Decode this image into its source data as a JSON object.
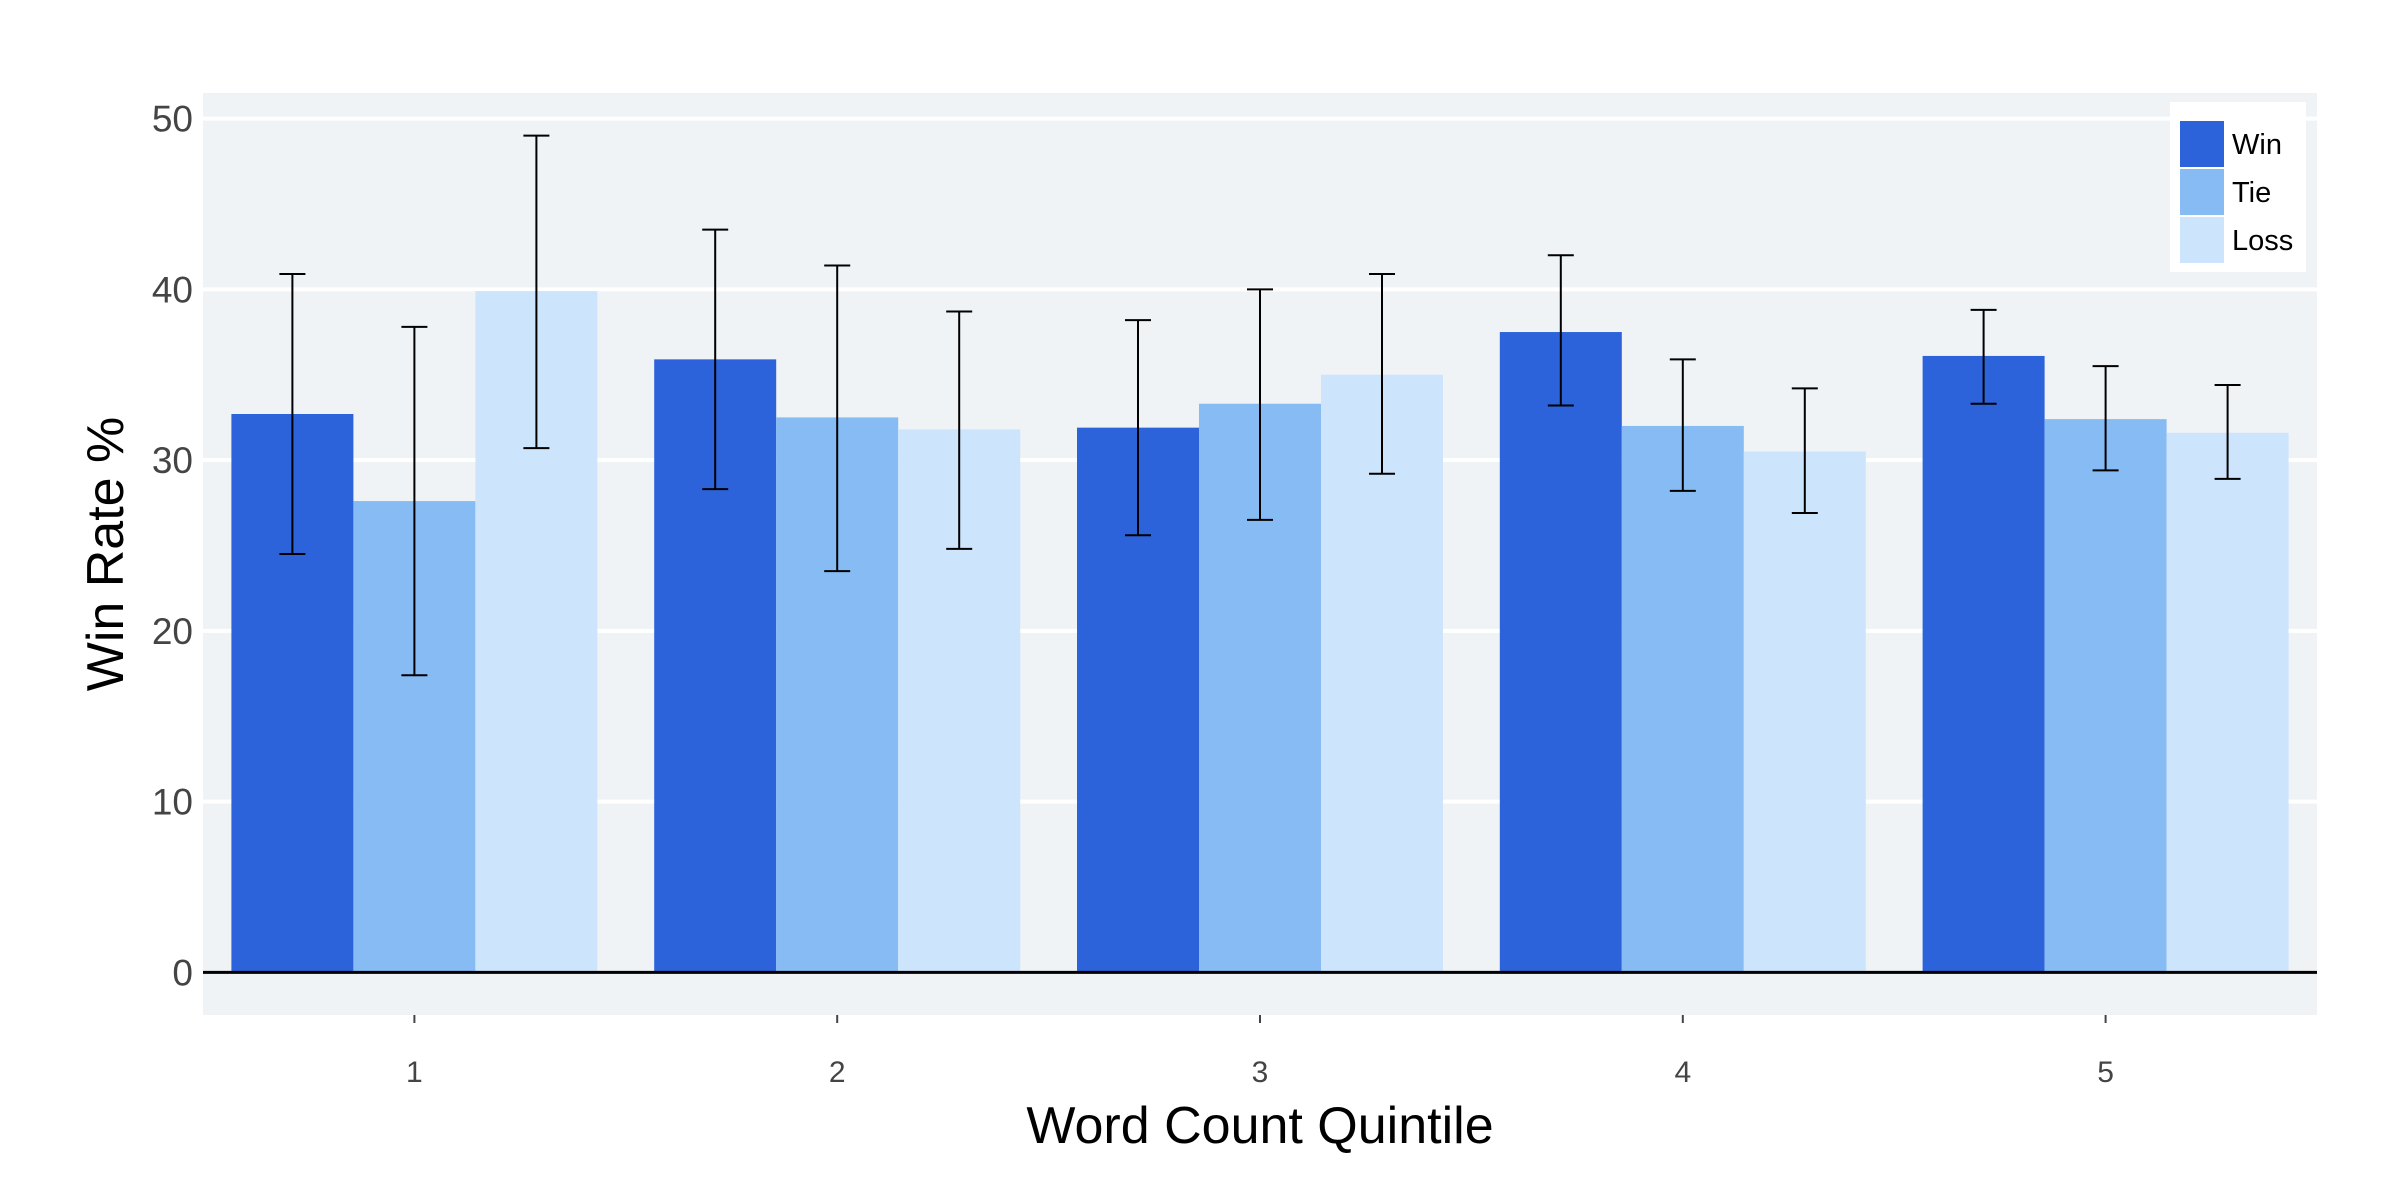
{
  "chart_data": {
    "type": "bar",
    "title": "",
    "xlabel": "Word Count Quintile",
    "ylabel": "Win Rate %",
    "categories": [
      "1",
      "2",
      "3",
      "4",
      "5"
    ],
    "ylim": [
      -2.5,
      51.5
    ],
    "yticks": [
      0,
      10,
      20,
      30,
      40,
      50
    ],
    "grid": true,
    "legend_position": "top-right",
    "colors": {
      "plot_bg": "#eff3f6",
      "grid": "#ffffff",
      "zero_line": "#000000",
      "error_bar": "#000000"
    },
    "series": [
      {
        "name": "Win",
        "color": "#2d63da",
        "values": [
          32.7,
          35.9,
          31.9,
          37.5,
          36.1
        ],
        "err_low": [
          24.5,
          28.3,
          25.6,
          33.2,
          33.3
        ],
        "err_high": [
          40.9,
          43.5,
          38.2,
          42.0,
          38.8
        ]
      },
      {
        "name": "Tie",
        "color": "#86bbf4",
        "values": [
          27.6,
          32.5,
          33.3,
          32.0,
          32.4
        ],
        "err_low": [
          17.4,
          23.5,
          26.5,
          28.2,
          29.4
        ],
        "err_high": [
          37.8,
          41.4,
          40.0,
          35.9,
          35.5
        ]
      },
      {
        "name": "Loss",
        "color": "#cde5fc",
        "values": [
          39.9,
          31.8,
          35.0,
          30.5,
          31.6
        ],
        "err_low": [
          30.7,
          24.8,
          29.2,
          26.9,
          28.9
        ],
        "err_high": [
          49.0,
          38.7,
          40.9,
          34.2,
          34.4
        ]
      }
    ]
  }
}
